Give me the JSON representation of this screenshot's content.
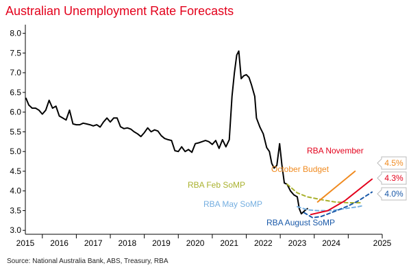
{
  "title": "Australian Unemployment Rate Forecasts",
  "source": "Source: National Australia Bank, ABS, Treasury, RBA",
  "chart_data": {
    "type": "line",
    "title": "Australian Unemployment Rate Forecasts",
    "xlabel": "",
    "ylabel": "",
    "xlim": [
      2014.5,
      2025.0
    ],
    "ylim": [
      2.9,
      8.15
    ],
    "y_ticks": [
      "3.0",
      "3.5",
      "4.0",
      "4.5",
      "5.0",
      "5.5",
      "6.0",
      "6.5",
      "7.0",
      "7.5",
      "8.0"
    ],
    "x_ticks": [
      "2015",
      "2016",
      "2017",
      "2018",
      "2019",
      "2020",
      "2021",
      "2022",
      "2023",
      "2024",
      "2025"
    ],
    "grid": false,
    "legend": "inline labels",
    "series": [
      {
        "name": "Actual",
        "color": "#000000",
        "style": "solid",
        "points": [
          [
            2014.52,
            6.35
          ],
          [
            2014.6,
            6.18
          ],
          [
            2014.7,
            6.1
          ],
          [
            2014.8,
            6.1
          ],
          [
            2014.9,
            6.05
          ],
          [
            2015.0,
            5.95
          ],
          [
            2015.1,
            6.05
          ],
          [
            2015.2,
            6.3
          ],
          [
            2015.3,
            6.1
          ],
          [
            2015.4,
            6.15
          ],
          [
            2015.5,
            5.9
          ],
          [
            2015.6,
            5.85
          ],
          [
            2015.7,
            5.8
          ],
          [
            2015.8,
            6.05
          ],
          [
            2015.9,
            5.7
          ],
          [
            2016.0,
            5.68
          ],
          [
            2016.1,
            5.68
          ],
          [
            2016.2,
            5.72
          ],
          [
            2016.3,
            5.7
          ],
          [
            2016.4,
            5.68
          ],
          [
            2016.5,
            5.65
          ],
          [
            2016.6,
            5.68
          ],
          [
            2016.7,
            5.62
          ],
          [
            2016.8,
            5.75
          ],
          [
            2016.9,
            5.85
          ],
          [
            2017.0,
            5.75
          ],
          [
            2017.1,
            5.85
          ],
          [
            2017.2,
            5.85
          ],
          [
            2017.3,
            5.63
          ],
          [
            2017.4,
            5.58
          ],
          [
            2017.5,
            5.6
          ],
          [
            2017.6,
            5.57
          ],
          [
            2017.7,
            5.5
          ],
          [
            2017.8,
            5.45
          ],
          [
            2017.9,
            5.38
          ],
          [
            2018.0,
            5.48
          ],
          [
            2018.1,
            5.6
          ],
          [
            2018.2,
            5.5
          ],
          [
            2018.3,
            5.55
          ],
          [
            2018.4,
            5.52
          ],
          [
            2018.5,
            5.4
          ],
          [
            2018.6,
            5.33
          ],
          [
            2018.7,
            5.3
          ],
          [
            2018.8,
            5.28
          ],
          [
            2018.9,
            5.02
          ],
          [
            2019.0,
            5.0
          ],
          [
            2019.1,
            5.12
          ],
          [
            2019.2,
            5.0
          ],
          [
            2019.3,
            5.05
          ],
          [
            2019.4,
            4.98
          ],
          [
            2019.5,
            5.2
          ],
          [
            2019.6,
            5.22
          ],
          [
            2019.7,
            5.25
          ],
          [
            2019.8,
            5.28
          ],
          [
            2019.9,
            5.25
          ],
          [
            2020.0,
            5.18
          ],
          [
            2020.1,
            5.28
          ],
          [
            2020.2,
            5.08
          ],
          [
            2020.3,
            5.3
          ],
          [
            2020.4,
            5.12
          ],
          [
            2020.5,
            5.3
          ],
          [
            2020.58,
            6.4
          ],
          [
            2020.65,
            7.0
          ],
          [
            2020.72,
            7.45
          ],
          [
            2020.78,
            7.55
          ],
          [
            2020.85,
            6.85
          ],
          [
            2020.92,
            6.92
          ],
          [
            2021.0,
            6.95
          ],
          [
            2021.08,
            6.88
          ],
          [
            2021.15,
            6.7
          ],
          [
            2021.25,
            6.4
          ],
          [
            2021.3,
            5.85
          ],
          [
            2021.4,
            5.62
          ],
          [
            2021.5,
            5.45
          ],
          [
            2021.6,
            5.1
          ],
          [
            2021.68,
            5.0
          ],
          [
            2021.75,
            4.7
          ],
          [
            2021.82,
            4.58
          ],
          [
            2021.9,
            4.65
          ],
          [
            2021.98,
            5.2
          ],
          [
            2022.05,
            4.65
          ],
          [
            2022.12,
            4.2
          ],
          [
            2022.2,
            4.17
          ],
          [
            2022.3,
            4.0
          ],
          [
            2022.4,
            3.9
          ],
          [
            2022.5,
            3.85
          ],
          [
            2022.56,
            3.55
          ],
          [
            2022.62,
            3.42
          ],
          [
            2022.72,
            3.5
          ],
          [
            2022.8,
            3.55
          ]
        ]
      },
      {
        "name": "RBA Feb SoMP",
        "color": "#a9b12d",
        "style": "dashed",
        "points": [
          [
            2022.2,
            4.17
          ],
          [
            2022.5,
            3.95
          ],
          [
            2022.8,
            3.85
          ],
          [
            2023.2,
            3.78
          ],
          [
            2023.6,
            3.72
          ],
          [
            2024.0,
            3.7
          ],
          [
            2024.4,
            3.7
          ]
        ]
      },
      {
        "name": "RBA May SoMP",
        "color": "#74aee0",
        "style": "dashed",
        "points": [
          [
            2022.5,
            3.6
          ],
          [
            2022.8,
            3.52
          ],
          [
            2023.1,
            3.5
          ],
          [
            2023.5,
            3.5
          ],
          [
            2023.9,
            3.55
          ],
          [
            2024.3,
            3.6
          ],
          [
            2024.4,
            3.62
          ]
        ]
      },
      {
        "name": "RBA August SoMP",
        "color": "#1858a8",
        "style": "dashed",
        "points": [
          [
            2022.7,
            3.45
          ],
          [
            2022.95,
            3.32
          ],
          [
            2023.2,
            3.35
          ],
          [
            2023.6,
            3.48
          ],
          [
            2024.0,
            3.62
          ],
          [
            2024.3,
            3.75
          ],
          [
            2024.7,
            3.97
          ]
        ]
      },
      {
        "name": "October Budget",
        "color": "#f08a1f",
        "style": "solid",
        "points": [
          [
            2023.1,
            3.72
          ],
          [
            2024.2,
            4.5
          ]
        ]
      },
      {
        "name": "RBA November",
        "color": "#e3001b",
        "style": "solid",
        "points": [
          [
            2022.9,
            3.4
          ],
          [
            2023.4,
            3.5
          ],
          [
            2023.9,
            3.75
          ],
          [
            2024.7,
            4.3
          ]
        ]
      }
    ],
    "annotations": [
      {
        "text": "RBA November",
        "color": "#e3001b"
      },
      {
        "text": "October Budget",
        "color": "#f08a1f"
      },
      {
        "text": "RBA Feb SoMP",
        "color": "#a9b12d"
      },
      {
        "text": "RBA May SoMP",
        "color": "#74aee0"
      },
      {
        "text": "RBA August SoMP",
        "color": "#1858a8"
      }
    ],
    "end_labels": [
      {
        "text": "4.5%",
        "color": "#f08a1f",
        "value": 4.5
      },
      {
        "text": "4.3%",
        "color": "#e3001b",
        "value": 4.3
      },
      {
        "text": "4.0%",
        "color": "#1858a8",
        "value": 3.97
      }
    ]
  }
}
